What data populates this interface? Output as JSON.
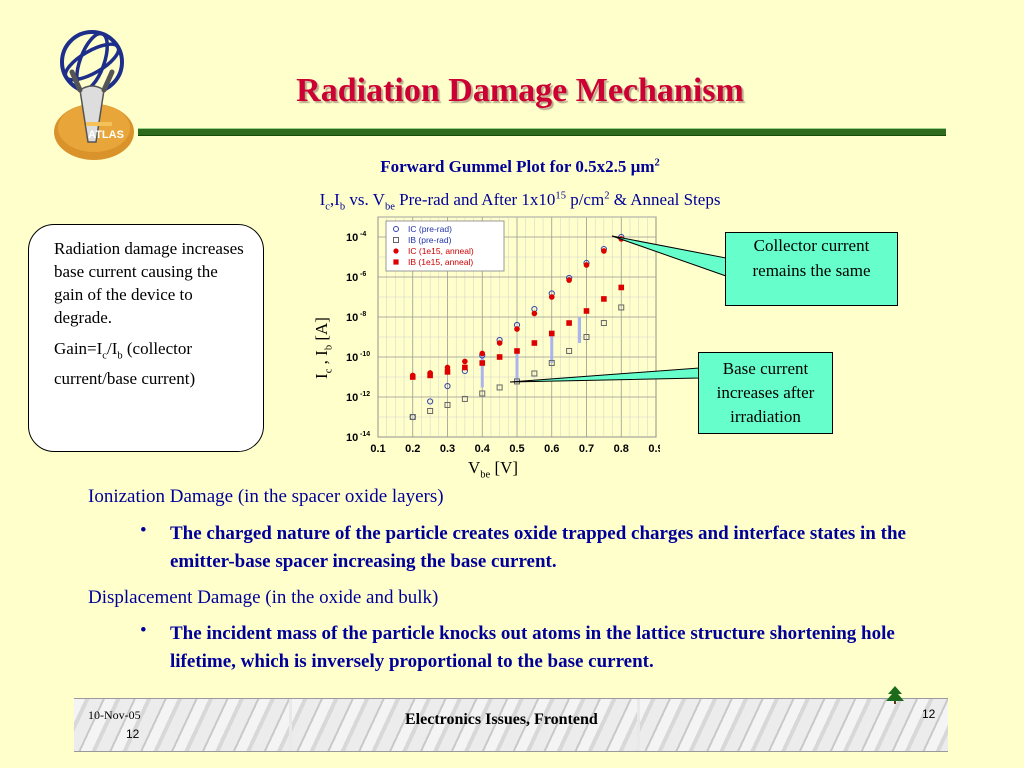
{
  "slide": {
    "title": "Radiation Damage Mechanism",
    "subtitle1": "Forward Gummel Plot for 0.5x2.5 µm",
    "subtitle1_sup": "2",
    "subtitle2": {
      "p1": "I",
      "s1": "c",
      "p2": ",I",
      "s2": "b",
      "p3": " vs. V",
      "s3": "be",
      "p4": " Pre-rad and After 1x10",
      "sup1": "15",
      "p5": " p/cm",
      "sup2": "2",
      "p6": " & Anneal Steps"
    },
    "logo_text": "ATLAS"
  },
  "infobox": {
    "para1": "Radiation damage increases base current causing the gain of the device to degrade.",
    "gain": {
      "p1": "Gain=I",
      "s1": "c",
      "p2": "/I",
      "s2": "b",
      "p3": " (collector current/base current)"
    }
  },
  "callouts": {
    "collector": "Collector current remains the same",
    "base": "Base current increases after irradiation"
  },
  "body": {
    "section1": "Ionization Damage (in the spacer oxide layers)",
    "bullet1": "The charged nature of the particle creates oxide trapped charges and interface states in the emitter-base spacer increasing the base current.",
    "section2": "Displacement Damage (in the oxide and bulk)",
    "bullet2": "The incident mass of the particle knocks out atoms in the lattice structure shortening hole lifetime, which is inversely proportional to the base current.",
    "bullet_glyph": "•"
  },
  "footer": {
    "date": "10-Nov-05",
    "num_left": "12",
    "title": "Electronics Issues, Frontend",
    "num_right": "12"
  },
  "colors": {
    "background": "#ffffcc",
    "title": "#cc0033",
    "text_blue": "#000099",
    "callout": "#66ffcc",
    "rule": "#2e6b1d",
    "prerad": "#3344aa",
    "anneal": "#dd0000"
  },
  "chart_data": {
    "type": "scatter",
    "xlabel_main": "V",
    "xlabel_sub": "be",
    "xlabel_unit": " [V]",
    "ylabel": {
      "p1": "I",
      "s1": "c",
      "p2": " , I",
      "s2": "b",
      "p3": " [A]"
    },
    "xlim": [
      0.1,
      0.9
    ],
    "ylim_log10": [
      -14,
      -3
    ],
    "x_ticks": [
      0.1,
      0.2,
      0.3,
      0.4,
      0.5,
      0.6,
      0.7,
      0.8,
      0.9
    ],
    "x_tick_labels": [
      "0.1",
      "0.2",
      "0.3",
      "0.4",
      "0.5",
      "0.6",
      "0.7",
      "0.8",
      "0.9"
    ],
    "y_ticks_exp": [
      -4,
      -6,
      -8,
      -10,
      -12,
      -14
    ],
    "y_tick_labels": [
      [
        "10",
        "-4"
      ],
      [
        "10",
        "-6"
      ],
      [
        "10",
        "-8"
      ],
      [
        "10",
        "-10"
      ],
      [
        "10",
        "-12"
      ],
      [
        "10",
        "-14"
      ]
    ],
    "log_scale_y": true,
    "grid": true,
    "legend_position": "top-left",
    "series": [
      {
        "name": "IC (pre-rad)",
        "marker": "open-circle",
        "color": "#3344aa",
        "x": [
          0.2,
          0.25,
          0.3,
          0.35,
          0.4,
          0.45,
          0.5,
          0.55,
          0.6,
          0.65,
          0.7,
          0.75,
          0.8
        ],
        "y": [
          1e-13,
          6e-13,
          3.5e-12,
          2e-11,
          1.2e-10,
          7e-10,
          4e-09,
          2.5e-08,
          1.5e-07,
          9e-07,
          5e-06,
          2.5e-05,
          0.0001
        ]
      },
      {
        "name": "IB (pre-rad)",
        "marker": "open-square",
        "color": "#3344aa",
        "x": [
          0.2,
          0.25,
          0.3,
          0.35,
          0.4,
          0.45,
          0.5,
          0.55,
          0.6,
          0.65,
          0.7,
          0.75,
          0.8
        ],
        "y": [
          1e-13,
          2e-13,
          4e-13,
          8e-13,
          1.5e-12,
          3e-12,
          6e-12,
          1.5e-11,
          5e-11,
          2e-10,
          1e-09,
          5e-09,
          3e-08
        ]
      },
      {
        "name": "IC (1e15, anneal)",
        "marker": "filled-circle",
        "color": "#dd0000",
        "x": [
          0.2,
          0.25,
          0.3,
          0.35,
          0.4,
          0.45,
          0.5,
          0.55,
          0.6,
          0.65,
          0.7,
          0.75,
          0.8
        ],
        "y": [
          1.2e-11,
          1.6e-11,
          3e-11,
          6e-11,
          1.5e-10,
          5e-10,
          2.5e-09,
          1.5e-08,
          1e-07,
          7e-07,
          4e-06,
          2e-05,
          8e-05
        ]
      },
      {
        "name": "IB (1e15, anneal)",
        "marker": "filled-square",
        "color": "#dd0000",
        "x": [
          0.2,
          0.25,
          0.3,
          0.35,
          0.4,
          0.45,
          0.5,
          0.55,
          0.6,
          0.65,
          0.7,
          0.75,
          0.8
        ],
        "y": [
          1e-11,
          1.2e-11,
          1.8e-11,
          3e-11,
          5e-11,
          1e-10,
          2e-10,
          5e-10,
          1.5e-09,
          5e-09,
          2e-08,
          8e-08,
          3e-07
        ]
      }
    ],
    "anneal_steps": [
      {
        "x": 0.4,
        "y_top": 1.5e-10,
        "y_bottom": 3e-12
      },
      {
        "x": 0.5,
        "y_top": 2e-10,
        "y_bottom": 6e-12
      },
      {
        "x": 0.6,
        "y_top": 1.5e-09,
        "y_bottom": 5e-11
      },
      {
        "x": 0.68,
        "y_top": 1e-08,
        "y_bottom": 5e-10
      }
    ]
  }
}
